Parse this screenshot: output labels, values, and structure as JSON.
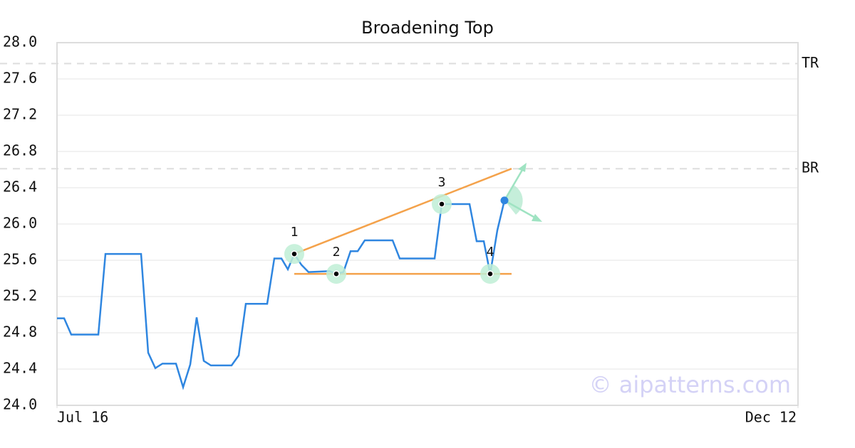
{
  "chart_data": {
    "type": "line",
    "title": "Broadening Top",
    "x": [
      0,
      1,
      2,
      5.8,
      6.8,
      11.8,
      12.8,
      13.8,
      14.8,
      16.7,
      17.7,
      18.7,
      19.6,
      20.6,
      21.6,
      24.5,
      25.5,
      26.5,
      29.5,
      30.5,
      31.5,
      32.4,
      33.3,
      34.3,
      35.3,
      38.3,
      39.2,
      40.2,
      41.2,
      42.2,
      43.2,
      47.1,
      48.1,
      53,
      54,
      55,
      57.9,
      58.9,
      59.9,
      60.8,
      61.8,
      62.8
    ],
    "series": [
      {
        "color": "#2f86e0",
        "values": [
          24.96,
          24.96,
          24.78,
          24.78,
          25.67,
          25.67,
          24.58,
          24.41,
          24.46,
          24.46,
          24.2,
          24.45,
          24.97,
          24.49,
          24.44,
          24.44,
          24.55,
          25.12,
          25.12,
          25.62,
          25.62,
          25.5,
          25.67,
          25.55,
          25.47,
          25.48,
          25.45,
          25.47,
          25.7,
          25.7,
          25.82,
          25.82,
          25.62,
          25.62,
          26.22,
          26.22,
          26.22,
          25.81,
          25.81,
          25.45,
          25.93,
          26.26
        ]
      }
    ],
    "xlim": [
      0,
      104
    ],
    "xticks": [
      {
        "value": 0,
        "label": "Jul 16"
      },
      {
        "value": 104,
        "label": "Dec 12"
      }
    ],
    "ylim": [
      24,
      28
    ],
    "yticks": [
      {
        "value": 24,
        "label": "24.0"
      },
      24.4,
      24.8,
      25.2,
      25.6,
      {
        "value": 26,
        "label": "26.0"
      },
      26.4,
      26.8,
      27.2,
      27.6,
      {
        "value": 28,
        "label": "28.0"
      }
    ],
    "grid": true,
    "levels": [
      {
        "label": "TR",
        "value": 27.77
      },
      {
        "label": "BR",
        "value": 26.61
      }
    ],
    "pattern_points": [
      {
        "label": "1",
        "x": 33.3,
        "y": 25.67
      },
      {
        "label": "2",
        "x": 39.2,
        "y": 25.45
      },
      {
        "label": "3",
        "x": 54,
        "y": 26.22
      },
      {
        "label": "4",
        "x": 60.8,
        "y": 25.45
      }
    ],
    "trendlines": [
      {
        "color": "#f4a24b",
        "x": [
          33.3,
          63.8
        ],
        "y": [
          25.67,
          26.61
        ]
      },
      {
        "color": "#f4a24b",
        "x": [
          33.3,
          63.8
        ],
        "y": [
          25.45,
          25.45
        ]
      }
    ],
    "watermark": "© aipatterns.com"
  }
}
